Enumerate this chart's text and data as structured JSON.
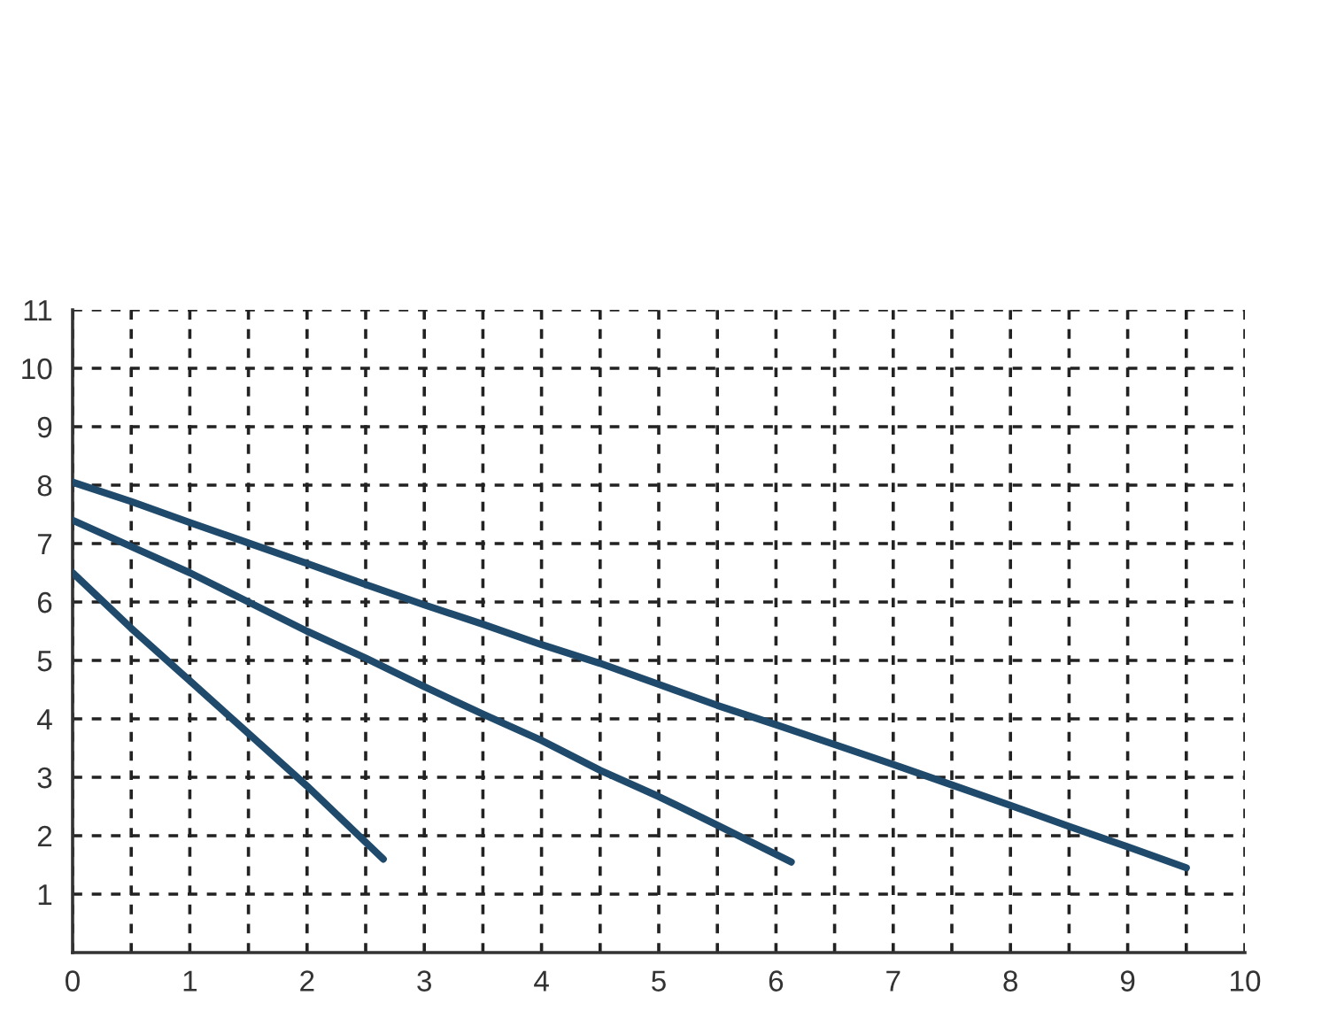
{
  "chart_data": {
    "type": "line",
    "xlim": [
      0,
      10
    ],
    "ylim": [
      0,
      11
    ],
    "xticks": [
      0,
      {
        "value": 0.5,
        "label": null
      },
      1,
      {
        "value": 1.5,
        "label": null
      },
      2,
      {
        "value": 2.5,
        "label": null
      },
      3,
      {
        "value": 3.5,
        "label": null
      },
      4,
      {
        "value": 4.5,
        "label": null
      },
      5,
      {
        "value": 5.5,
        "label": null
      },
      6,
      {
        "value": 6.5,
        "label": null
      },
      7,
      {
        "value": 7.5,
        "label": null
      },
      8,
      {
        "value": 8.5,
        "label": null
      },
      9,
      {
        "value": 9.5,
        "label": null
      },
      10
    ],
    "yticks": [
      1,
      2,
      3,
      4,
      5,
      6,
      7,
      8,
      9,
      10,
      11
    ],
    "grid": true,
    "marker": "none",
    "line_style": "solid",
    "series": [
      {
        "color": "#1f4a6b",
        "x": [
          0,
          0.5,
          1,
          1.5,
          2,
          2.65
        ],
        "values": [
          6.5,
          5.55,
          4.65,
          3.75,
          2.85,
          1.6
        ]
      },
      {
        "color": "#1f4a6b",
        "x": [
          0,
          0.5,
          1,
          1.5,
          2,
          2.5,
          3,
          3.5,
          4,
          4.5,
          5,
          5.5,
          6.13
        ],
        "values": [
          7.4,
          6.95,
          6.5,
          6.0,
          5.5,
          5.04,
          4.55,
          4.08,
          3.63,
          3.12,
          2.67,
          2.18,
          1.55
        ]
      },
      {
        "color": "#1f4a6b",
        "x": [
          0,
          0.5,
          1,
          1.5,
          2,
          2.5,
          3,
          3.5,
          4,
          4.5,
          5,
          5.5,
          6,
          6.5,
          7,
          7.5,
          8,
          8.5,
          9,
          9.5
        ],
        "values": [
          8.05,
          7.72,
          7.36,
          7.01,
          6.66,
          6.3,
          5.95,
          5.62,
          5.27,
          4.95,
          4.59,
          4.23,
          3.9,
          3.56,
          3.22,
          2.87,
          2.52,
          2.16,
          1.81,
          1.45
        ]
      }
    ]
  }
}
